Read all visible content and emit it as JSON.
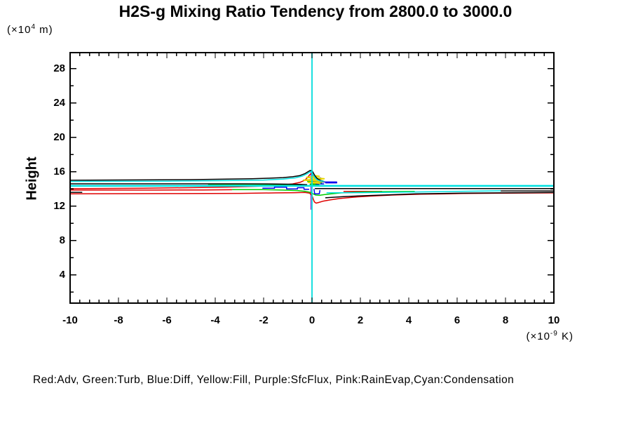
{
  "chart_data": {
    "type": "line",
    "title": "H2S-g Mixing Ratio Tendency from 2800.0 to 3000.0",
    "ylabel": "Height",
    "y_unit": {
      "open": "(×10",
      "sup": "4",
      "close": " m)"
    },
    "x_unit": {
      "open": "(×10",
      "sup": "-9",
      "close": " K)"
    },
    "legend_text": "Red:Adv, Green:Turb, Blue:Diff, Yellow:Fill, Purple:SfcFlux, Pink:RainEvap,Cyan:Condensation",
    "xlim": [
      -10,
      10
    ],
    "ylim": [
      0.73,
      29.87
    ],
    "x_ticks": [
      -10,
      -8,
      -6,
      -4,
      -2,
      0,
      2,
      4,
      6,
      8,
      10
    ],
    "x_minor_step": 0.4,
    "y_ticks": [
      4,
      8,
      12,
      16,
      20,
      24,
      28
    ],
    "y_minor_step": 2,
    "grid": false,
    "legend_position": "bottom-text-line",
    "axis_color": "#000000",
    "zero_line_color": "#00e0e0",
    "series": [
      {
        "name": "RainEvap",
        "color": "#ffa0a0",
        "width": 1.4,
        "segments": [
          [
            [
              0,
              0.73
            ],
            [
              0,
              29.87
            ]
          ]
        ]
      },
      {
        "name": "SfcFlux",
        "color": "#a040d0",
        "width": 1.4,
        "segments": [
          [
            [
              -0.045,
              11.6
            ],
            [
              -0.045,
              16.2
            ]
          ]
        ]
      },
      {
        "name": "Adv",
        "color": "#e00000",
        "width": 1.5,
        "segments": [
          [
            [
              -10,
              14.04
            ],
            [
              -7,
              14.1
            ],
            [
              -5,
              14.16
            ],
            [
              -3.5,
              14.23
            ],
            [
              -2.5,
              14.3
            ],
            [
              -1.8,
              14.38
            ],
            [
              -1.2,
              14.48
            ],
            [
              -0.8,
              14.6
            ],
            [
              -0.5,
              14.78
            ],
            [
              -0.3,
              15.02
            ],
            [
              -0.18,
              15.35
            ],
            [
              -0.1,
              15.65
            ],
            [
              -0.04,
              15.78
            ],
            [
              0.03,
              15.68
            ],
            [
              0.09,
              15.4
            ],
            [
              0.16,
              15.12
            ]
          ],
          [
            [
              -10,
              13.45
            ],
            [
              -6,
              13.47
            ],
            [
              -3,
              13.5
            ],
            [
              -1.5,
              13.55
            ],
            [
              -0.7,
              13.58
            ],
            [
              -0.3,
              13.6
            ],
            [
              -0.1,
              13.52
            ],
            [
              0,
              13.25
            ],
            [
              0.05,
              12.85
            ],
            [
              0.1,
              12.5
            ],
            [
              0.17,
              12.36
            ],
            [
              0.28,
              12.44
            ],
            [
              0.45,
              12.58
            ],
            [
              0.75,
              12.74
            ],
            [
              1.15,
              12.9
            ],
            [
              1.7,
              13.05
            ],
            [
              2.4,
              13.18
            ],
            [
              3.3,
              13.3
            ],
            [
              4.5,
              13.4
            ],
            [
              6.2,
              13.48
            ],
            [
              8,
              13.52
            ],
            [
              10,
              13.55
            ]
          ],
          [
            [
              -10,
              13.88
            ],
            [
              -6.5,
              13.88
            ],
            [
              -4.5,
              13.9
            ],
            [
              -3.3,
              13.92
            ]
          ],
          [
            [
              1.3,
              13.72
            ],
            [
              2.9,
              13.72
            ]
          ]
        ]
      },
      {
        "name": "Turb",
        "color": "#00cc00",
        "width": 1.5,
        "segments": [
          [
            [
              -4.3,
              14.56
            ],
            [
              -2.5,
              14.56
            ],
            [
              -1.2,
              14.53
            ],
            [
              -0.4,
              14.5
            ]
          ],
          [
            [
              -3.3,
              13.94
            ],
            [
              -2,
              13.93
            ],
            [
              -1.2,
              13.88
            ],
            [
              -0.6,
              13.82
            ],
            [
              -0.25,
              13.73
            ],
            [
              -0.05,
              13.6
            ],
            [
              0.05,
              13.44
            ],
            [
              0.15,
              13.3
            ],
            [
              0.3,
              13.27
            ],
            [
              0.5,
              13.35
            ],
            [
              0.8,
              13.45
            ],
            [
              1.2,
              13.55
            ],
            [
              1.8,
              13.62
            ],
            [
              2.6,
              13.68
            ],
            [
              3.5,
              13.71
            ],
            [
              4.25,
              13.72
            ]
          ],
          [
            [
              -0.2,
              14.88
            ],
            [
              0.28,
              14.86
            ],
            [
              0.05,
              14.72
            ],
            [
              0.4,
              14.68
            ],
            [
              -0.08,
              14.56
            ],
            [
              0.3,
              14.48
            ]
          ]
        ]
      },
      {
        "name": "Diff",
        "color": "#0000ee",
        "width": 1.5,
        "segments": [
          [
            [
              -2.05,
              14.1
            ],
            [
              -1.55,
              14.1
            ],
            [
              -1.55,
              14.22
            ],
            [
              -1.05,
              14.22
            ],
            [
              -1.05,
              14.02
            ],
            [
              -0.6,
              14.02
            ],
            [
              -0.6,
              14.16
            ],
            [
              -0.33,
              14.16
            ],
            [
              -0.33,
              13.97
            ],
            [
              -0.12,
              13.97
            ]
          ],
          [
            [
              0.04,
              14.82
            ],
            [
              1.02,
              14.82
            ],
            [
              1.02,
              14.72
            ],
            [
              0.55,
              14.72
            ]
          ],
          [
            [
              0.1,
              15.28
            ],
            [
              0.38,
              15.28
            ]
          ],
          [
            [
              0.08,
              14.02
            ],
            [
              0.11,
              13.45
            ],
            [
              0.3,
              13.45
            ],
            [
              0.33,
              13.88
            ]
          ],
          [
            [
              0.15,
              14.6
            ],
            [
              0.5,
              14.6
            ]
          ]
        ]
      },
      {
        "name": "Fill",
        "color": "#e6d800",
        "width": 2,
        "segments": [
          [
            [
              0.06,
              15.6
            ],
            [
              0.3,
              15.48
            ],
            [
              -0.22,
              15.36
            ],
            [
              0.5,
              15.2
            ],
            [
              -0.35,
              15.04
            ],
            [
              0.48,
              14.9
            ],
            [
              -0.15,
              14.77
            ],
            [
              0.35,
              14.66
            ]
          ]
        ]
      },
      {
        "name": "unlabeled-black",
        "color": "#000000",
        "width": 1.5,
        "segments": [
          [
            [
              -10,
              15.02
            ],
            [
              -7,
              15.06
            ],
            [
              -5,
              15.1
            ],
            [
              -3.5,
              15.15
            ],
            [
              -2.5,
              15.2
            ],
            [
              -1.8,
              15.26
            ],
            [
              -1.2,
              15.33
            ],
            [
              -0.8,
              15.43
            ],
            [
              -0.5,
              15.57
            ],
            [
              -0.3,
              15.78
            ],
            [
              -0.17,
              16
            ],
            [
              -0.08,
              16.16
            ],
            [
              0,
              16.14
            ],
            [
              0.06,
              15.85
            ],
            [
              0.13,
              15.5
            ],
            [
              0.22,
              15.2
            ],
            [
              0.35,
              15
            ],
            [
              0.45,
              14.93
            ]
          ],
          [
            [
              -10,
              14.61
            ],
            [
              -3,
              14.61
            ],
            [
              -1.5,
              14.59
            ],
            [
              -0.5,
              14.55
            ],
            [
              -0.2,
              14.5
            ]
          ],
          [
            [
              0.12,
              14.05
            ],
            [
              10,
              14.05
            ]
          ],
          [
            [
              0.55,
              12.98
            ],
            [
              1.3,
              13.12
            ],
            [
              2.1,
              13.22
            ],
            [
              3.1,
              13.32
            ],
            [
              4.3,
              13.44
            ],
            [
              6.2,
              13.52
            ],
            [
              8.2,
              13.57
            ],
            [
              10,
              13.6
            ]
          ],
          [
            [
              -10,
              13.62
            ],
            [
              -9.5,
              13.62
            ]
          ],
          [
            [
              7.8,
              13.78
            ],
            [
              10,
              13.78
            ]
          ]
        ]
      },
      {
        "name": "Condensation",
        "color": "#00e0e0",
        "width": 1.5,
        "widths": [
          1.8,
          1.5,
          2.5,
          1.5
        ],
        "segments": [
          [
            [
              0,
              0.73
            ],
            [
              0,
              29.87
            ]
          ],
          [
            [
              -10,
              14.88
            ],
            [
              -6,
              14.92
            ],
            [
              -3.5,
              14.98
            ],
            [
              -2,
              15.05
            ],
            [
              -1.2,
              15.15
            ],
            [
              -0.7,
              15.3
            ],
            [
              -0.4,
              15.5
            ],
            [
              -0.2,
              15.78
            ],
            [
              -0.1,
              15.98
            ],
            [
              -0.04,
              16.04
            ],
            [
              0.04,
              15.72
            ],
            [
              0.12,
              15.35
            ],
            [
              0.2,
              15.1
            ],
            [
              0.32,
              14.96
            ],
            [
              0.5,
              14.9
            ]
          ],
          [
            [
              -10,
              14.37
            ],
            [
              10,
              14.37
            ]
          ],
          [
            [
              0.6,
              13.57
            ],
            [
              2,
              13.58
            ],
            [
              4,
              13.64
            ],
            [
              6,
              13.73
            ],
            [
              7.8,
              13.8
            ]
          ]
        ]
      }
    ]
  }
}
